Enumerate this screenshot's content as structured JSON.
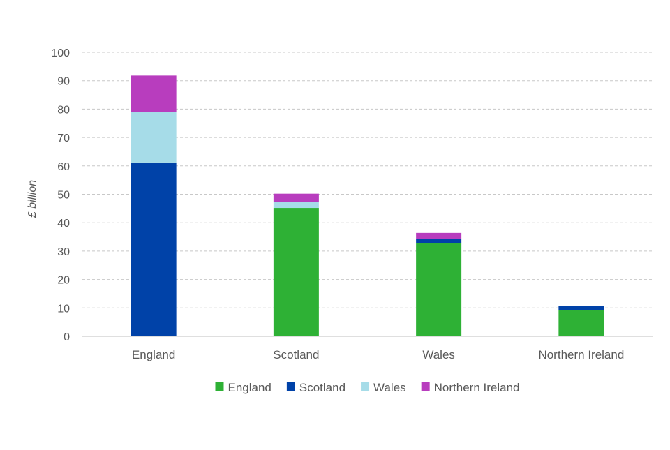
{
  "chart_data": {
    "type": "bar",
    "stacked": true,
    "categories": [
      "England",
      "Scotland",
      "Wales",
      "Northern Ireland"
    ],
    "series": [
      {
        "name": "England",
        "color": "#2EB135",
        "values": [
          0,
          45.2,
          32.8,
          9.2
        ]
      },
      {
        "name": "Scotland",
        "color": "#0042A8",
        "values": [
          61.2,
          0,
          1.6,
          1.4
        ]
      },
      {
        "name": "Wales",
        "color": "#A6DCE8",
        "values": [
          17.7,
          2.0,
          0,
          0
        ]
      },
      {
        "name": "Northern Ireland",
        "color": "#B83DBE",
        "values": [
          12.9,
          3.0,
          2.0,
          0
        ]
      }
    ],
    "title": "",
    "xlabel": "",
    "ylabel": "£ billion",
    "ylim": [
      0,
      100
    ],
    "yticks": [
      0,
      10,
      20,
      30,
      40,
      50,
      60,
      70,
      80,
      90,
      100
    ],
    "grid": true,
    "legend_position": "bottom"
  }
}
